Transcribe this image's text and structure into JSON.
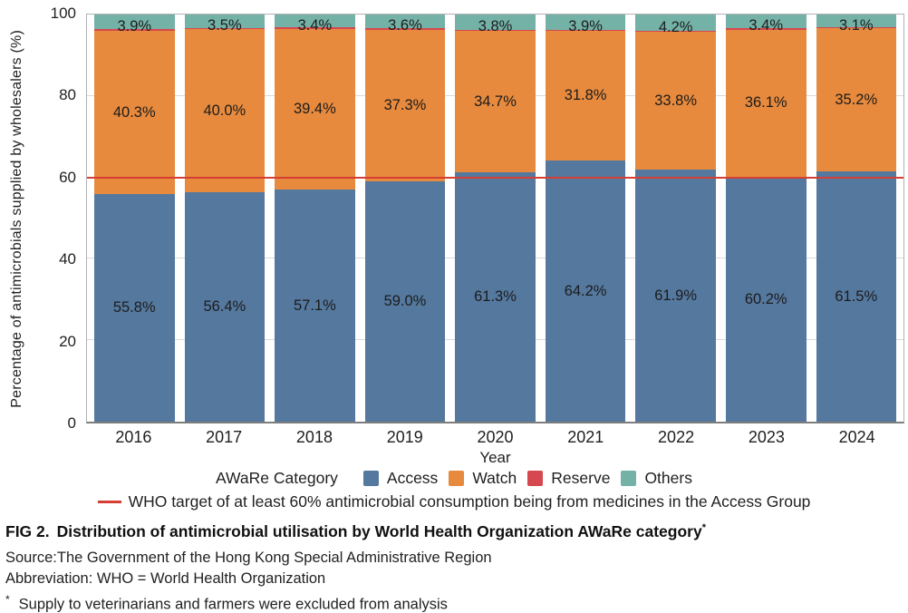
{
  "chart_data": {
    "type": "bar",
    "stacked": true,
    "categories": [
      "2016",
      "2017",
      "2018",
      "2019",
      "2020",
      "2021",
      "2022",
      "2023",
      "2024"
    ],
    "series": [
      {
        "name": "Access",
        "color": "#54789e",
        "values": [
          55.8,
          56.4,
          57.1,
          59.0,
          61.3,
          64.2,
          61.9,
          60.2,
          61.5
        ],
        "labels": [
          "55.8%",
          "56.4%",
          "57.1%",
          "59.0%",
          "61.3%",
          "64.2%",
          "61.9%",
          "60.2%",
          "61.5%"
        ]
      },
      {
        "name": "Watch",
        "color": "#e78a3d",
        "values": [
          40.3,
          40.0,
          39.4,
          37.3,
          34.7,
          31.8,
          33.8,
          36.1,
          35.2
        ],
        "labels": [
          "40.3%",
          "40.0%",
          "39.4%",
          "37.3%",
          "34.7%",
          "31.8%",
          "33.8%",
          "36.1%",
          "35.2%"
        ]
      },
      {
        "name": "Reserve",
        "color": "#d6484f",
        "values": [
          0.0,
          0.1,
          0.1,
          0.1,
          0.2,
          0.1,
          0.1,
          0.3,
          0.2
        ],
        "labels": null
      },
      {
        "name": "Others",
        "color": "#74b2a8",
        "values": [
          3.9,
          3.5,
          3.4,
          3.6,
          3.8,
          3.9,
          4.2,
          3.4,
          3.1
        ],
        "labels": [
          "3.9%",
          "3.5%",
          "3.4%",
          "3.6%",
          "3.8%",
          "3.9%",
          "4.2%",
          "3.4%",
          "3.1%"
        ]
      }
    ],
    "xlabel": "Year",
    "ylabel": "Percentage of antimicrobials supplied by wholesalers (%)",
    "ylim": [
      0,
      100
    ],
    "yticks": [
      0,
      20,
      40,
      60,
      80,
      100
    ],
    "grid": true,
    "legend_title": "AWaRe Category",
    "legend_position": "bottom",
    "target_line": {
      "value": 60,
      "color": "#d53e33",
      "label": "WHO target of at least 60% antimicrobial consumption being from medicines in the Access Group"
    }
  },
  "caption": {
    "fig_label": "FIG 2.",
    "fig_text": "Distribution of antimicrobial utilisation by World Health Organization AWaRe category",
    "fig_superscript": "*",
    "source": "Source:The Government of the Hong Kong Special Administrative Region",
    "abbreviation": "Abbreviation: WHO = World Health Organization",
    "footnote_marker": "*",
    "footnote": "Supply to veterinarians and farmers were excluded from analysis"
  }
}
